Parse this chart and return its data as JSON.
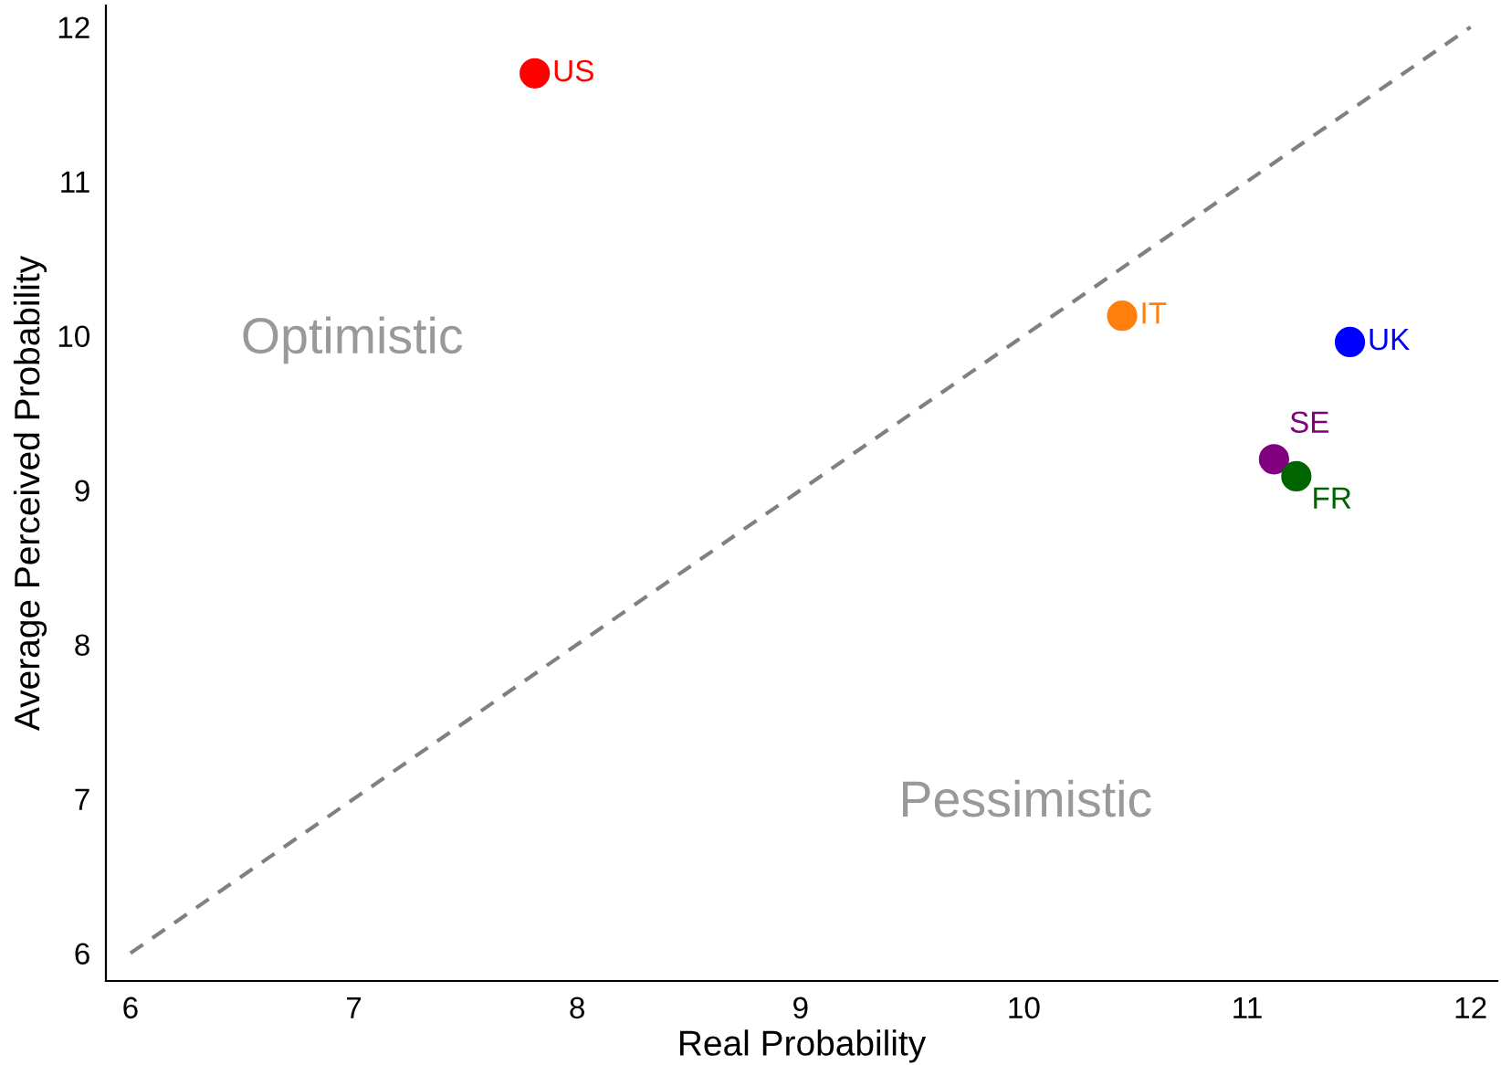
{
  "chart_data": {
    "type": "scatter",
    "xlabel": "Real Probability",
    "ylabel": "Average Perceived Probability",
    "xlim": [
      5.89,
      12.12
    ],
    "ylim": [
      5.82,
      12.14
    ],
    "xticks": [
      6,
      7,
      8,
      9,
      10,
      11,
      12
    ],
    "yticks": [
      6,
      7,
      8,
      9,
      10,
      11,
      12
    ],
    "grid": false,
    "legend": false,
    "marker": "circle",
    "annotations": [
      "Optimistic",
      "Pessimistic"
    ],
    "series": [
      {
        "name": "US",
        "color": "#ff0000",
        "x": [
          7.81
        ],
        "values": [
          11.7
        ]
      },
      {
        "name": "IT",
        "color": "#ff7f0e",
        "x": [
          10.44
        ],
        "values": [
          10.13
        ]
      },
      {
        "name": "UK",
        "color": "#0000ff",
        "x": [
          11.46
        ],
        "values": [
          9.96
        ]
      },
      {
        "name": "SE",
        "color": "#800080",
        "x": [
          11.12
        ],
        "values": [
          9.2
        ]
      },
      {
        "name": "FR",
        "color": "#006400",
        "x": [
          11.22
        ],
        "values": [
          9.09
        ]
      },
      {
        "type": "line",
        "color": "#808080",
        "line_style": "dashed",
        "marker": "none",
        "x": [
          6,
          12
        ],
        "values": [
          6,
          12
        ]
      }
    ]
  }
}
